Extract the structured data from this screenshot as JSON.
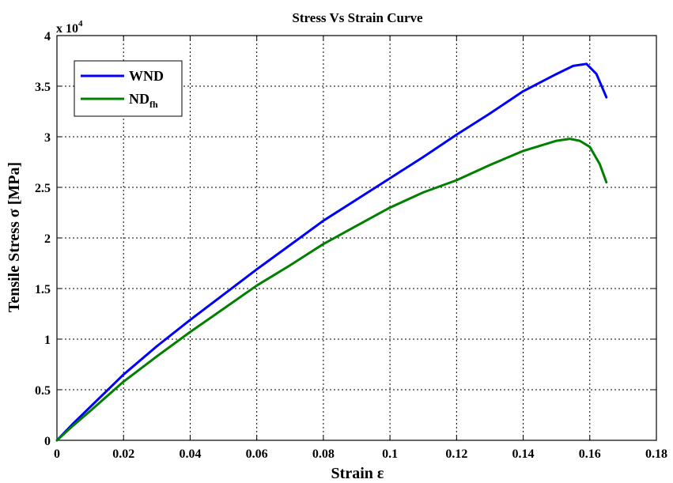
{
  "chart_data": {
    "type": "line",
    "title": "Stress Vs Strain Curve",
    "xlabel": "Strain ε",
    "ylabel": "Tensile Stress σ [MPa]",
    "y_multiplier": "x 10",
    "y_multiplier_exponent": "4",
    "xlim": [
      0,
      0.18
    ],
    "ylim": [
      0,
      4
    ],
    "grid": true,
    "legend_position": "top-left",
    "x_ticks": [
      "0",
      "0.02",
      "0.04",
      "0.06",
      "0.08",
      "0.1",
      "0.12",
      "0.14",
      "0.16",
      "0.18"
    ],
    "y_ticks": [
      "0",
      "0.5",
      "1",
      "1.5",
      "2",
      "2.5",
      "3",
      "3.5",
      "4"
    ],
    "series": [
      {
        "name": "WND",
        "color": "#0000ff",
        "x": [
          0,
          0.005,
          0.01,
          0.02,
          0.03,
          0.04,
          0.05,
          0.06,
          0.07,
          0.08,
          0.09,
          0.1,
          0.11,
          0.12,
          0.13,
          0.14,
          0.15,
          0.155,
          0.159,
          0.162,
          0.165
        ],
        "y": [
          0,
          0.17,
          0.33,
          0.65,
          0.93,
          1.19,
          1.44,
          1.69,
          1.93,
          2.17,
          2.38,
          2.59,
          2.8,
          3.02,
          3.23,
          3.45,
          3.62,
          3.7,
          3.72,
          3.62,
          3.39
        ]
      },
      {
        "name": "ND",
        "name_sub": "fh",
        "color": "#007f00",
        "x": [
          0,
          0.005,
          0.01,
          0.02,
          0.03,
          0.04,
          0.05,
          0.06,
          0.07,
          0.08,
          0.09,
          0.1,
          0.11,
          0.12,
          0.13,
          0.14,
          0.15,
          0.154,
          0.157,
          0.16,
          0.163,
          0.165
        ],
        "y": [
          0,
          0.15,
          0.29,
          0.58,
          0.83,
          1.07,
          1.3,
          1.53,
          1.73,
          1.94,
          2.12,
          2.3,
          2.45,
          2.57,
          2.72,
          2.86,
          2.96,
          2.98,
          2.96,
          2.9,
          2.73,
          2.55
        ]
      }
    ]
  }
}
